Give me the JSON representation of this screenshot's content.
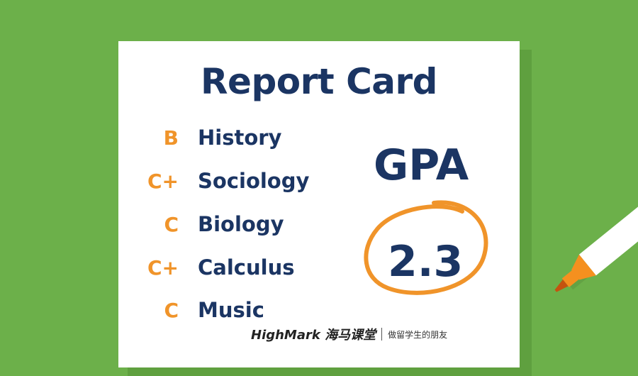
{
  "title": "Report Card",
  "grades": [
    {
      "grade": "B",
      "subject": "History"
    },
    {
      "grade": "C+",
      "subject": "Sociology"
    },
    {
      "grade": "C",
      "subject": "Biology"
    },
    {
      "grade": "C+",
      "subject": "Calculus"
    },
    {
      "grade": "C",
      "subject": "Music"
    }
  ],
  "gpa": {
    "label": "GPA",
    "value": "2.3"
  },
  "watermark": {
    "brand": "HighMark 海马课堂",
    "slogan": "做留学生的朋友"
  },
  "colors": {
    "background": "#6cb04a",
    "navy": "#1b3563",
    "orange": "#f0942a",
    "paper": "#ffffff"
  }
}
